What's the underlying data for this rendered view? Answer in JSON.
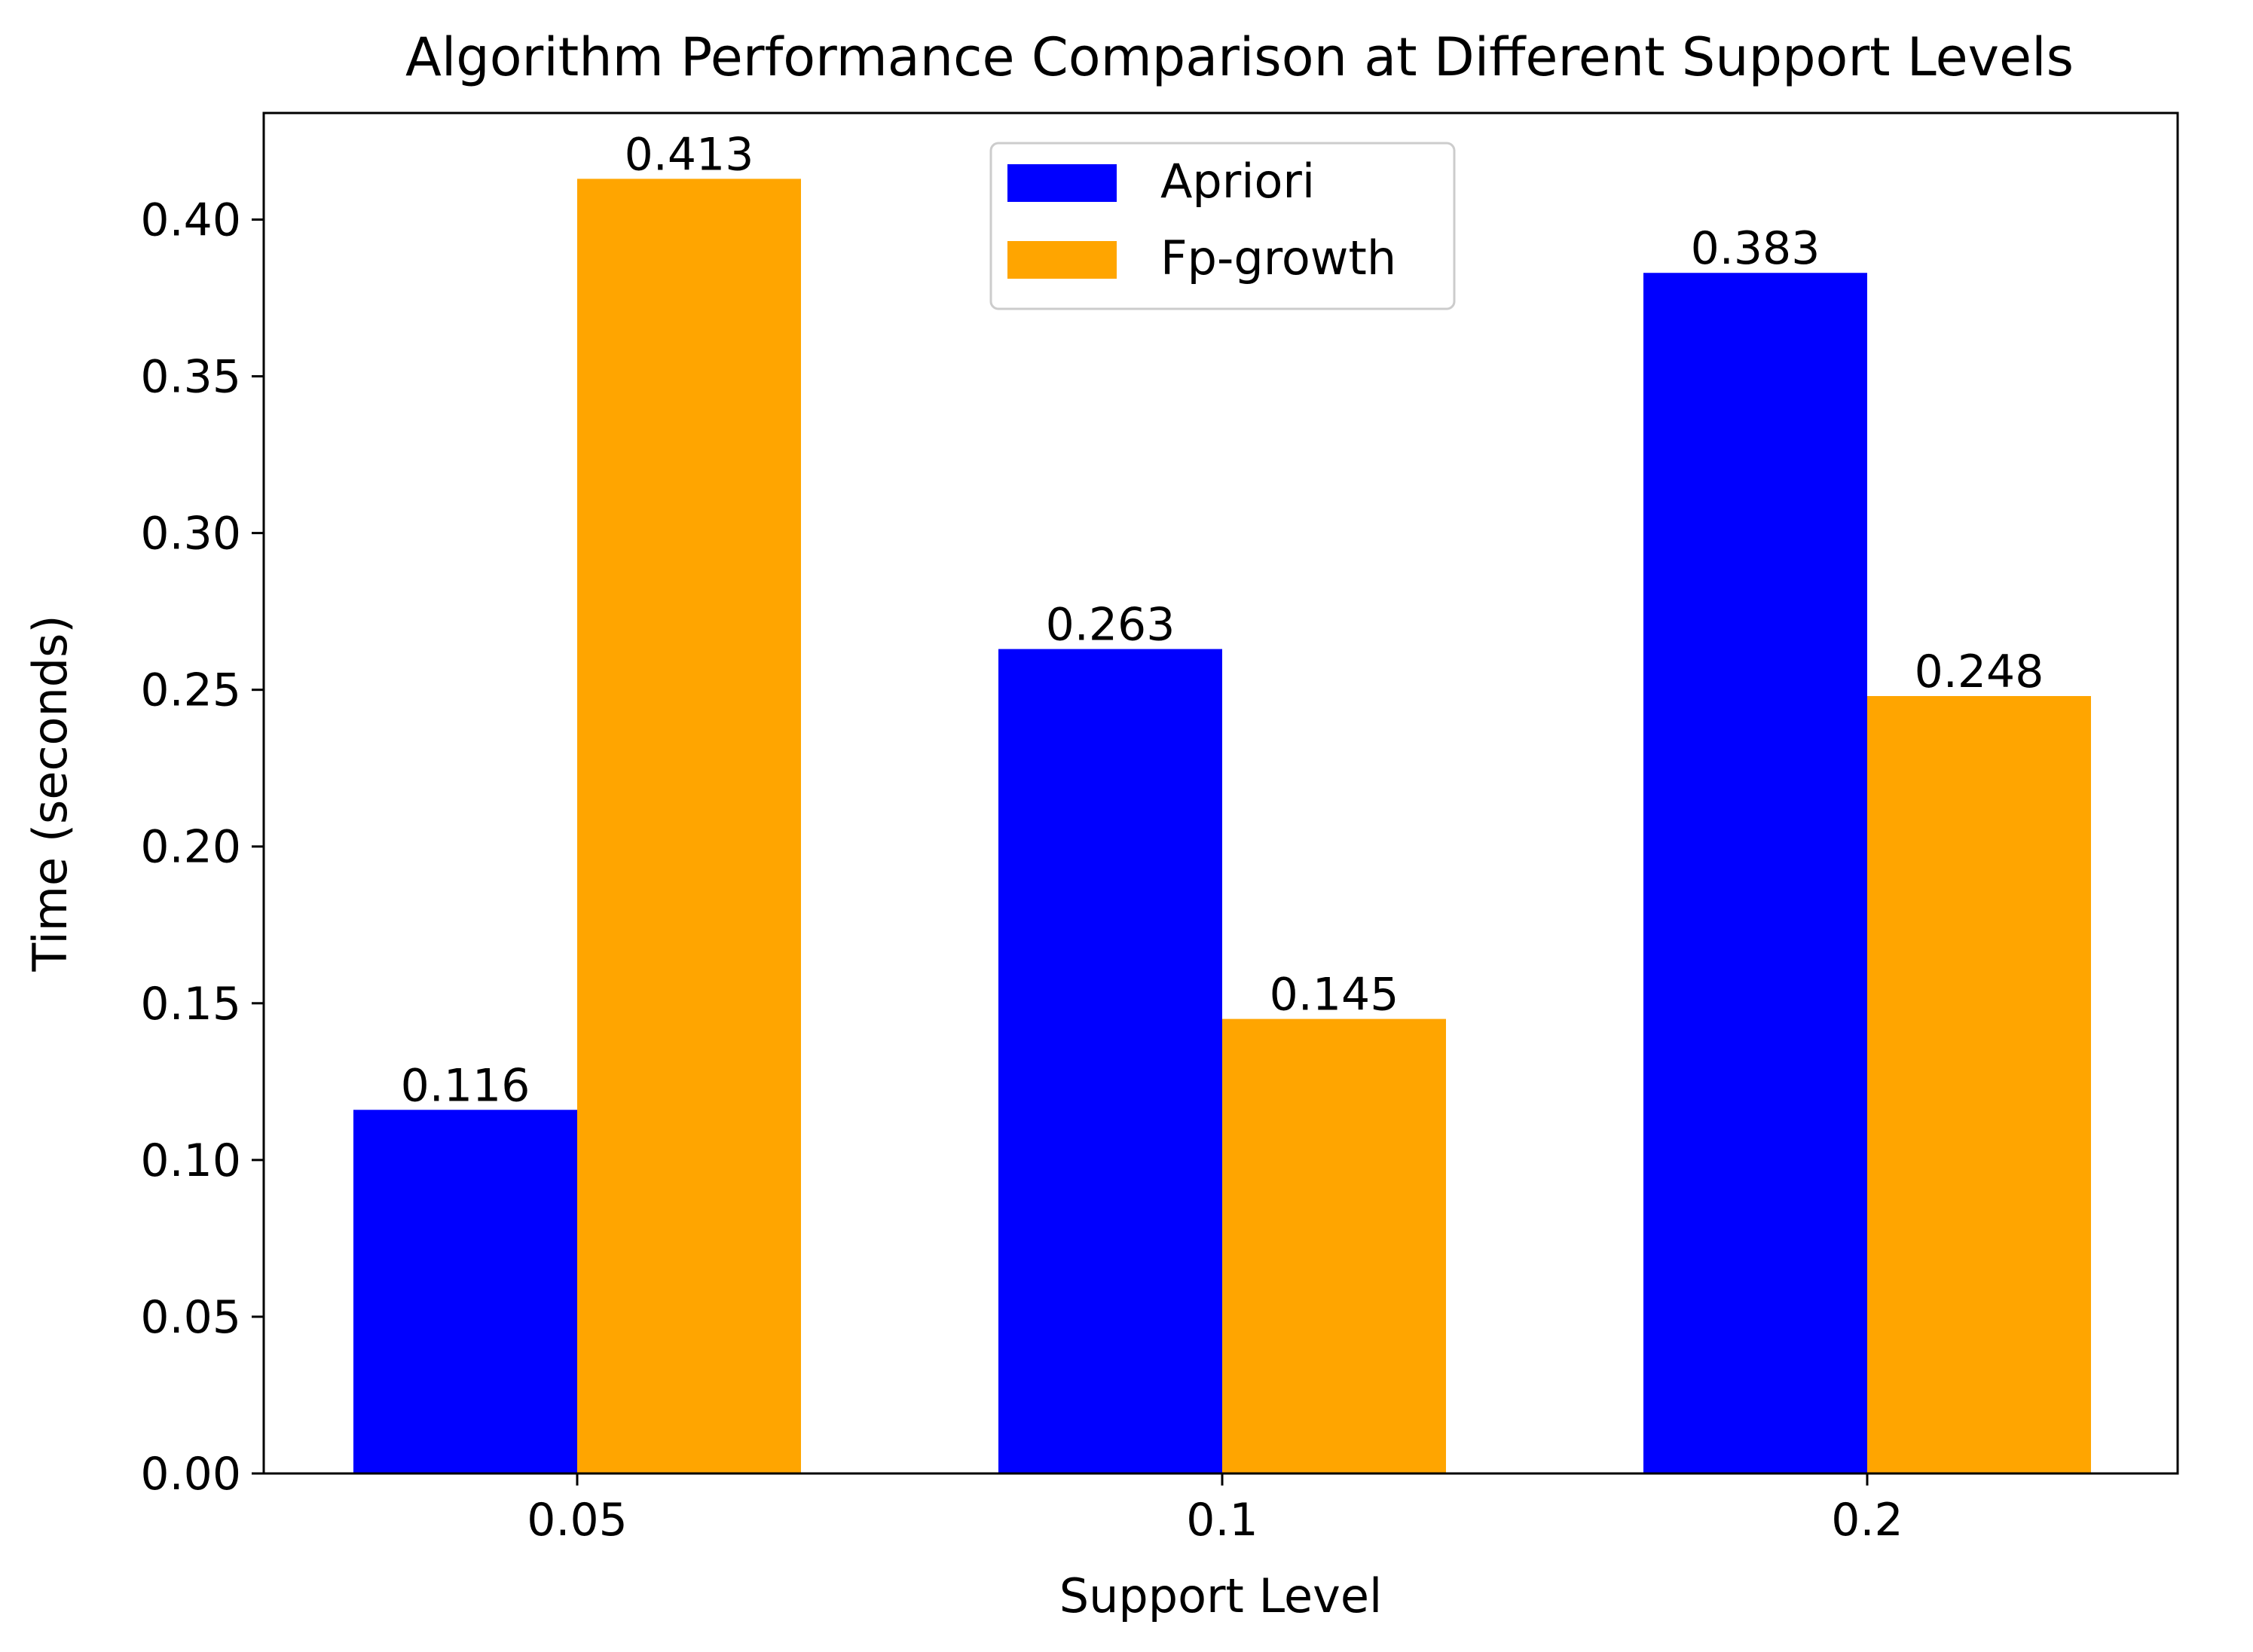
{
  "chart_data": {
    "type": "bar",
    "title": "Algorithm Performance Comparison at Different Support Levels",
    "xlabel": "Support Level",
    "ylabel": "Time (seconds)",
    "categories": [
      "0.05",
      "0.1",
      "0.2"
    ],
    "series": [
      {
        "name": "Apriori",
        "color": "#0000ff",
        "values": [
          0.116,
          0.263,
          0.383
        ],
        "labels": [
          "0.116",
          "0.263",
          "0.383"
        ]
      },
      {
        "name": "Fp-growth",
        "color": "#ffa500",
        "values": [
          0.413,
          0.145,
          0.248
        ],
        "labels": [
          "0.413",
          "0.145",
          "0.248"
        ]
      }
    ],
    "ylim": [
      0,
      0.434
    ],
    "yticks": [
      0.0,
      0.05,
      0.1,
      0.15,
      0.2,
      0.25,
      0.3,
      0.35,
      0.4
    ],
    "ytick_labels": [
      "0.00",
      "0.05",
      "0.10",
      "0.15",
      "0.20",
      "0.25",
      "0.30",
      "0.35",
      "0.40"
    ],
    "legend_position": "upper-center",
    "grid": false
  }
}
